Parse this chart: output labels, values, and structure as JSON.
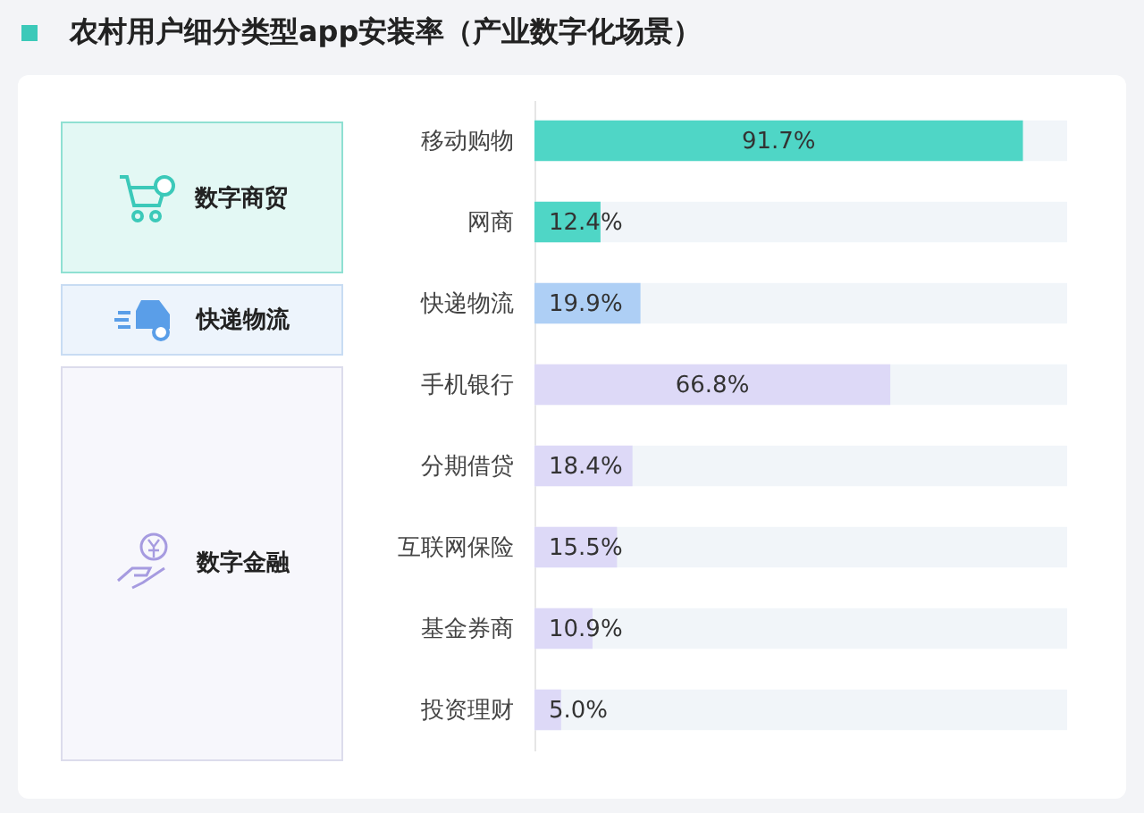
{
  "chart_data": {
    "type": "bar",
    "orientation": "horizontal",
    "title": "农村用户细分类型app安装率（产业数字化场景）",
    "categories": [
      "移动购物",
      "网商",
      "快递物流",
      "手机银行",
      "分期借贷",
      "互联网保险",
      "基金券商",
      "投资理财"
    ],
    "values": [
      91.7,
      12.4,
      19.9,
      66.8,
      18.4,
      15.5,
      10.9,
      5.0
    ],
    "value_labels": [
      "91.7%",
      "12.4%",
      "19.9%",
      "66.8%",
      "18.4%",
      "15.5%",
      "10.9%",
      "5.0%"
    ],
    "colors": [
      "#4fd6c6",
      "#4fd6c6",
      "#aecff5",
      "#ddd9f7",
      "#ddd9f7",
      "#ddd9f7",
      "#ddd9f7",
      "#ddd9f7"
    ],
    "xlim": [
      0,
      100
    ],
    "tick_labels": "y",
    "annotations": [
      "数字商贸",
      "快递物流",
      "数字金融"
    ]
  }
}
